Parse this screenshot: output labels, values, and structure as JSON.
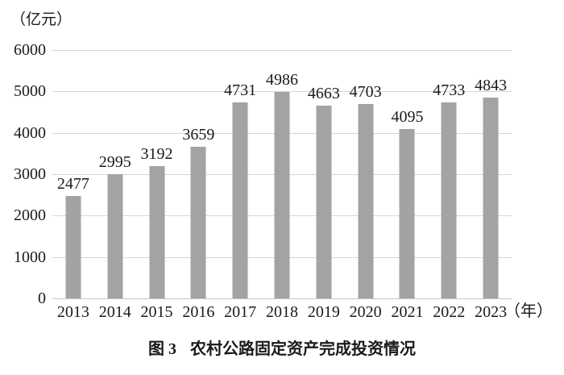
{
  "chart_data": {
    "type": "bar",
    "title": "图 3 农村公路固定资产完成投资情况",
    "unit_label": "（亿元）",
    "x_unit_label": "（年）",
    "categories": [
      "2013",
      "2014",
      "2015",
      "2016",
      "2017",
      "2018",
      "2019",
      "2020",
      "2021",
      "2022",
      "2023"
    ],
    "values": [
      2477,
      2995,
      3192,
      3659,
      4731,
      4986,
      4663,
      4703,
      4095,
      4733,
      4843
    ],
    "xlabel": "年",
    "ylabel": "亿元",
    "ylim": [
      0,
      6000
    ],
    "yticks": [
      0,
      1000,
      2000,
      3000,
      4000,
      5000,
      6000
    ],
    "grid": true,
    "legend_position": "none",
    "data_labels": true,
    "bar_color": "#a3a3a3",
    "gridline_color": "#d6d6d6",
    "baseline_color": "#c6c6c6",
    "text_color": "#1a1a1a"
  },
  "caption": {
    "label": "图 3",
    "title": "农村公路固定资产完成投资情况"
  }
}
